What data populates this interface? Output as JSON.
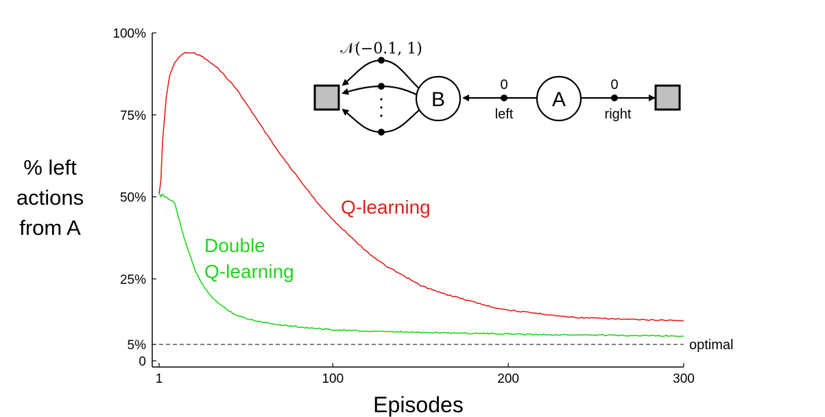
{
  "chart_data": {
    "type": "line",
    "xlabel": "Episodes",
    "ylabel_lines": [
      "% left",
      "actions",
      "from A"
    ],
    "xlim": [
      1,
      300
    ],
    "ylim": [
      0,
      100
    ],
    "x_ticks": [
      {
        "value": 1,
        "label": "1"
      },
      {
        "value": 100,
        "label": "100"
      },
      {
        "value": 200,
        "label": "200"
      },
      {
        "value": 300,
        "label": "300"
      }
    ],
    "y_ticks": [
      {
        "value": 0,
        "label": "0"
      },
      {
        "value": 5,
        "label": "5%"
      },
      {
        "value": 25,
        "label": "25%"
      },
      {
        "value": 50,
        "label": "50%"
      },
      {
        "value": 75,
        "label": "75%"
      },
      {
        "value": 100,
        "label": "100%"
      }
    ],
    "grid": false,
    "series": [
      {
        "name": "Q-learning",
        "color": "#e0201a",
        "x": [
          1,
          2,
          3,
          5,
          7,
          10,
          13,
          16,
          20,
          25,
          30,
          35,
          40,
          45,
          50,
          55,
          60,
          65,
          70,
          80,
          90,
          100,
          110,
          120,
          130,
          140,
          150,
          160,
          170,
          180,
          190,
          200,
          210,
          220,
          230,
          240,
          250,
          260,
          270,
          280,
          290,
          300
        ],
        "values": [
          51,
          55,
          67,
          80,
          87,
          91,
          93,
          94,
          94,
          93,
          91,
          89,
          86,
          83,
          79,
          75,
          71,
          67,
          63,
          56,
          49,
          43,
          38,
          33,
          29,
          26,
          23,
          21,
          19.5,
          18,
          16.5,
          15.5,
          14.8,
          14.3,
          13.6,
          13.2,
          13,
          12.8,
          12.6,
          12.5,
          12.4,
          12.2
        ]
      },
      {
        "name": "Double Q-learning",
        "label_lines": [
          "Double",
          "Q-learning"
        ],
        "color": "#22d41c",
        "x": [
          1,
          2,
          3,
          4,
          5,
          6,
          8,
          10,
          12,
          15,
          18,
          22,
          26,
          30,
          35,
          40,
          45,
          50,
          60,
          70,
          80,
          90,
          100,
          120,
          140,
          160,
          180,
          200,
          220,
          240,
          260,
          280,
          300
        ],
        "values": [
          51,
          50,
          51,
          50,
          50,
          49.5,
          49,
          48,
          44,
          38,
          33,
          27,
          23,
          20,
          17.5,
          15.5,
          14,
          13,
          11.8,
          11,
          10.4,
          9.9,
          9.5,
          9,
          8.8,
          8.6,
          8.4,
          8.2,
          8,
          7.9,
          7.8,
          7.7,
          7.6
        ]
      }
    ],
    "reference_line": {
      "value": 5,
      "label": "optimal",
      "style": "dashed"
    }
  },
  "inset_diagram": {
    "distribution_label": "𝒩(−0.1, 1)",
    "node_b": "B",
    "node_a": "A",
    "left_reward": "0",
    "left_action": "left",
    "right_reward": "0",
    "right_action": "right",
    "terminal_color": "#c0c0c0"
  }
}
